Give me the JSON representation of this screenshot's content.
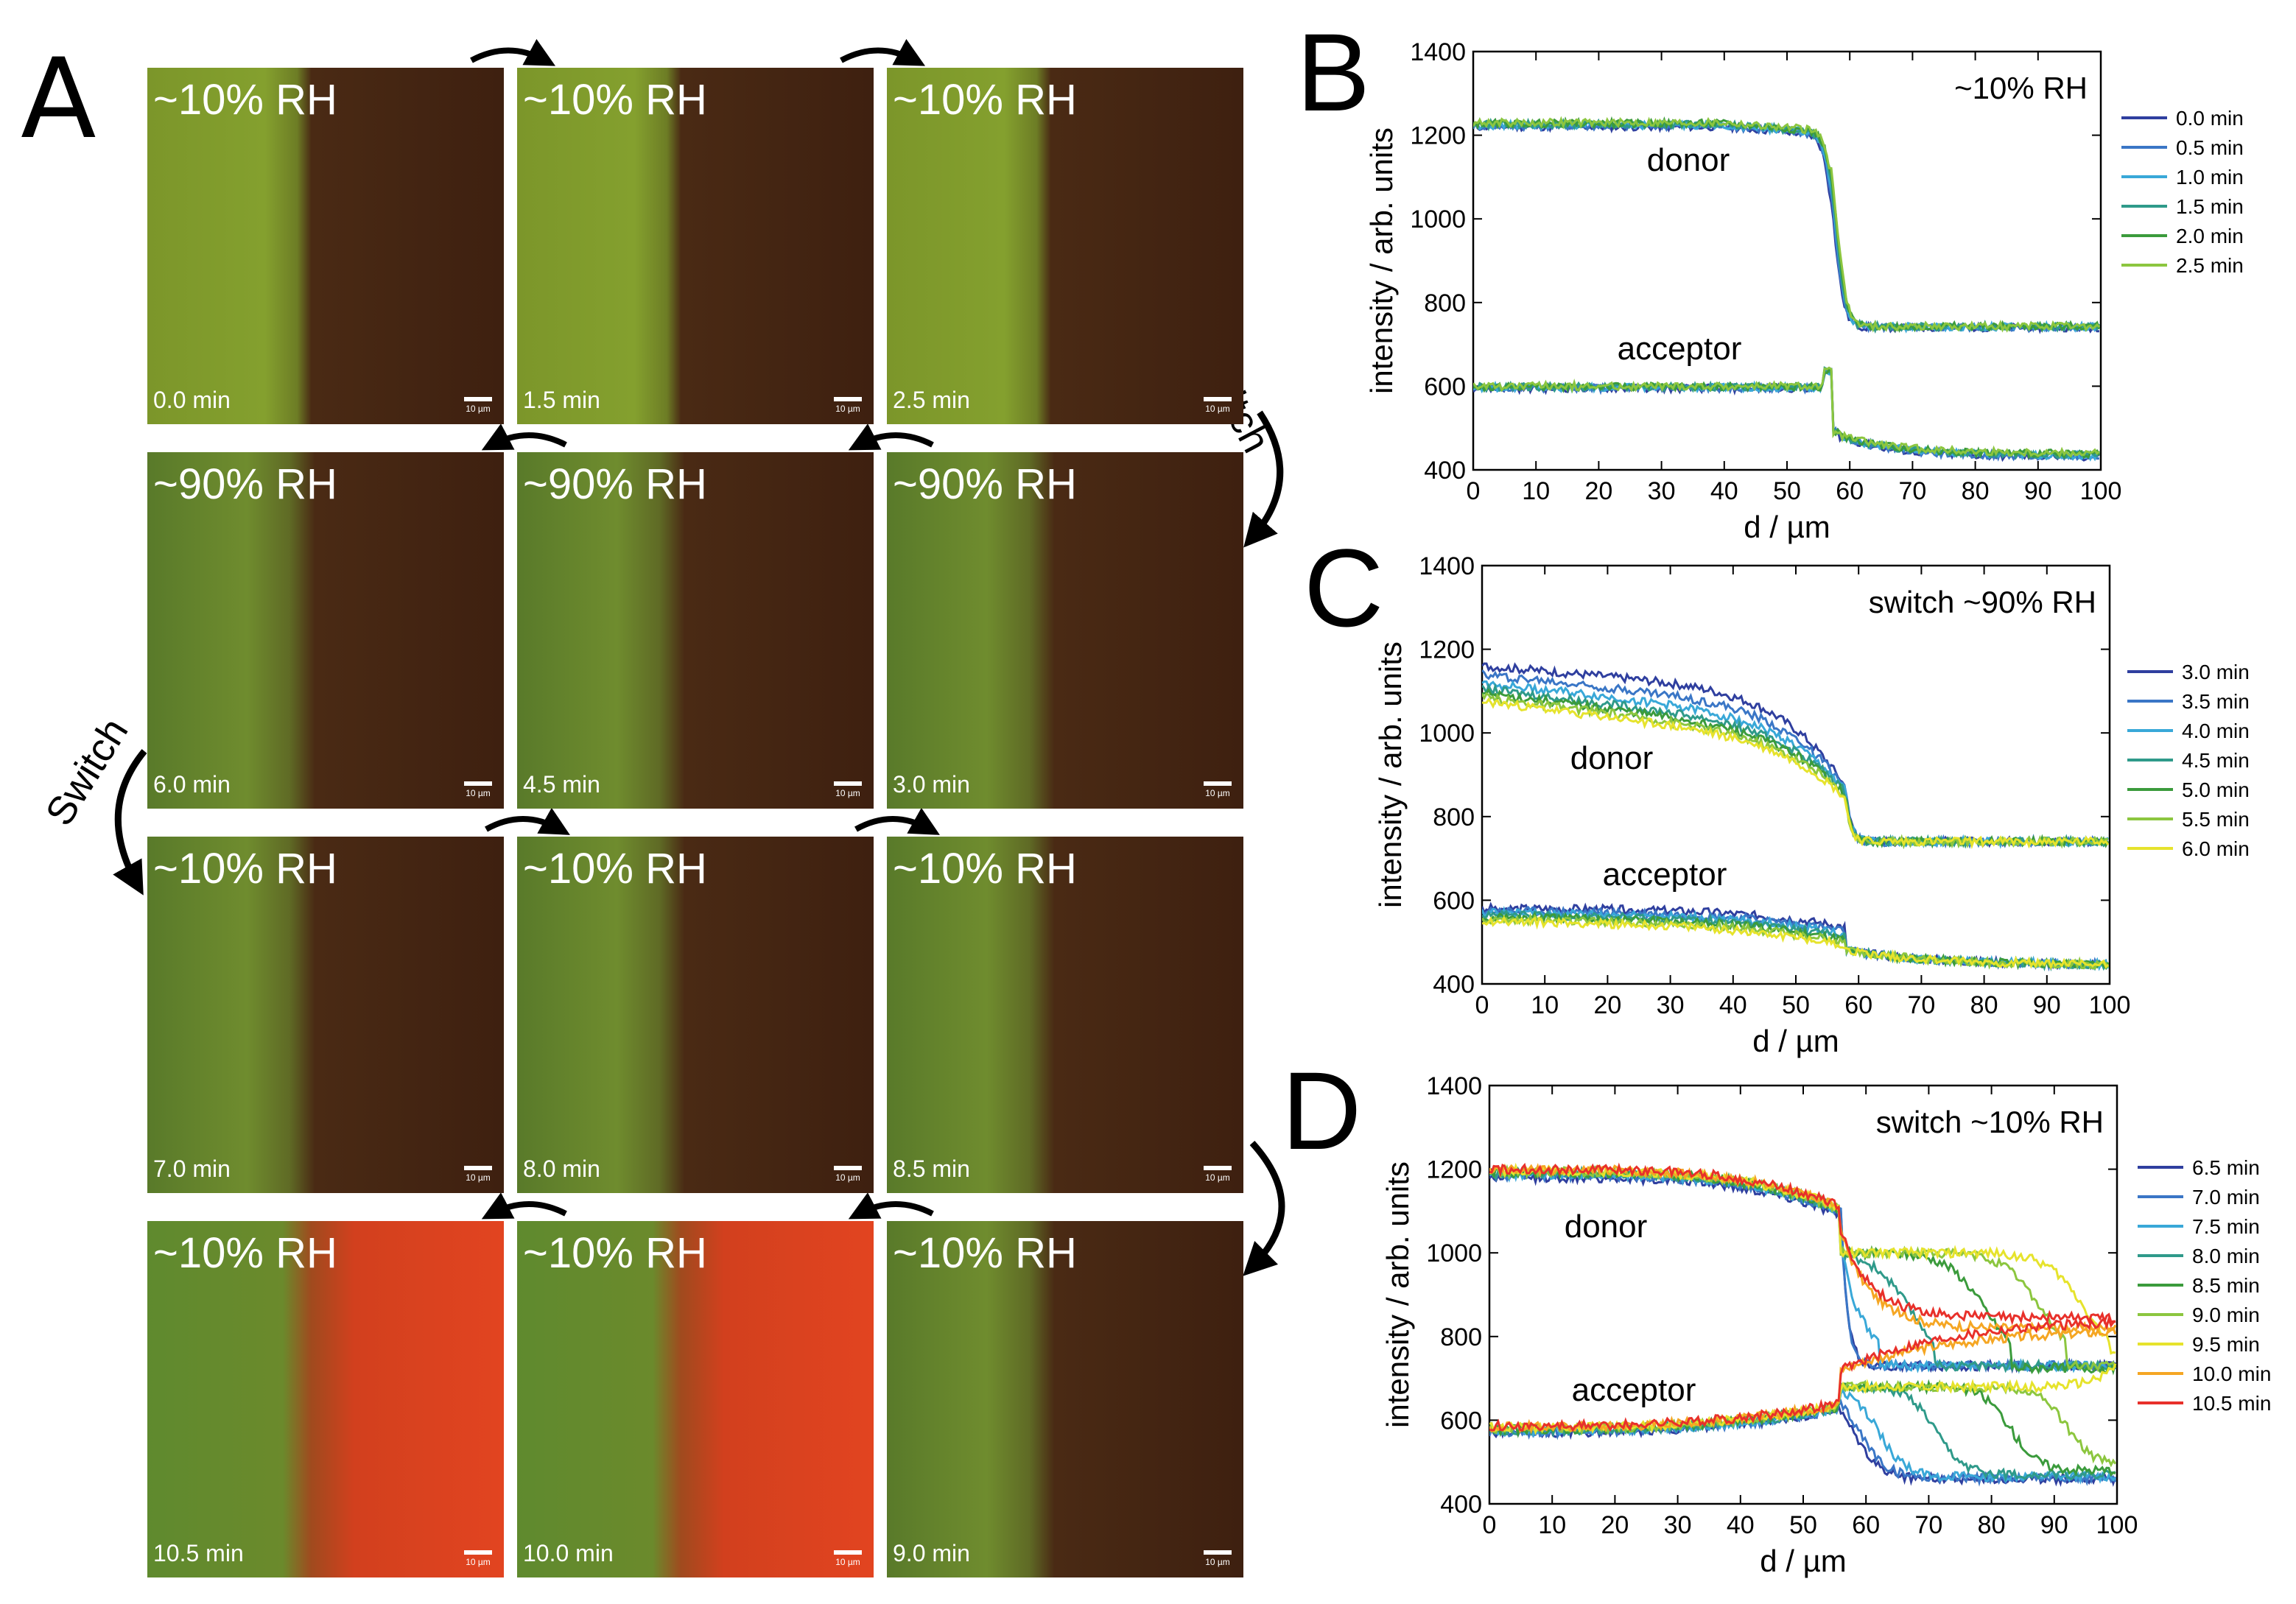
{
  "panel_a": {
    "letter": "A",
    "switch_labels": [
      "Switch",
      "Switch"
    ],
    "scale_bar": "10 µm",
    "tiles": [
      {
        "rh": "~10% RH",
        "time": "0.0 min",
        "mode": "dry"
      },
      {
        "rh": "~10% RH",
        "time": "1.5 min",
        "mode": "dry"
      },
      {
        "rh": "~10% RH",
        "time": "2.5 min",
        "mode": "dry"
      },
      {
        "rh": "~90% RH",
        "time": "6.0 min",
        "mode": "wet"
      },
      {
        "rh": "~90% RH",
        "time": "4.5 min",
        "mode": "wet"
      },
      {
        "rh": "~90% RH",
        "time": "3.0 min",
        "mode": "wet"
      },
      {
        "rh": "~10% RH",
        "time": "7.0 min",
        "mode": "wet"
      },
      {
        "rh": "~10% RH",
        "time": "8.0 min",
        "mode": "wet"
      },
      {
        "rh": "~10% RH",
        "time": "8.5 min",
        "mode": "wet"
      },
      {
        "rh": "~10% RH",
        "time": "10.5 min",
        "mode": "red"
      },
      {
        "rh": "~10% RH",
        "time": "10.0 min",
        "mode": "red"
      },
      {
        "rh": "~10% RH",
        "time": "9.0 min",
        "mode": "wet"
      }
    ]
  },
  "chart_data": [
    {
      "panel": "B",
      "type": "line",
      "annotation": "~10% RH",
      "xlabel": "d / µm",
      "ylabel": "intensity / arb. units",
      "xlim": [
        0,
        100
      ],
      "ylim": [
        400,
        1400
      ],
      "xticks": [
        0,
        10,
        20,
        30,
        40,
        50,
        60,
        70,
        80,
        90,
        100
      ],
      "yticks": [
        400,
        600,
        800,
        1000,
        1200,
        1400
      ],
      "grid": false,
      "legend_position": "right",
      "group_labels": {
        "donor": "donor",
        "acceptor": "acceptor"
      },
      "series": [
        {
          "name": "0.0 min",
          "color": "#2f3f9f",
          "donor": {
            "high": 1220,
            "low": 740,
            "x0": 57.5
          },
          "acceptor": {
            "plateau": 595,
            "x0": 57.5,
            "end": 430
          }
        },
        {
          "name": "0.5 min",
          "color": "#3a76c6",
          "donor": {
            "high": 1222,
            "low": 741,
            "x0": 57.6
          },
          "acceptor": {
            "plateau": 596,
            "x0": 57.6,
            "end": 432
          }
        },
        {
          "name": "1.0 min",
          "color": "#39a8d8",
          "donor": {
            "high": 1224,
            "low": 742,
            "x0": 57.7
          },
          "acceptor": {
            "plateau": 597,
            "x0": 57.7,
            "end": 434
          }
        },
        {
          "name": "1.5 min",
          "color": "#2f9a8a",
          "donor": {
            "high": 1226,
            "low": 742,
            "x0": 57.8
          },
          "acceptor": {
            "plateau": 598,
            "x0": 57.8,
            "end": 436
          }
        },
        {
          "name": "2.0 min",
          "color": "#3b9b3c",
          "donor": {
            "high": 1228,
            "low": 743,
            "x0": 57.9
          },
          "acceptor": {
            "plateau": 599,
            "x0": 57.9,
            "end": 438
          }
        },
        {
          "name": "2.5 min",
          "color": "#8cc63f",
          "donor": {
            "high": 1230,
            "low": 743,
            "x0": 58.0
          },
          "acceptor": {
            "plateau": 600,
            "x0": 58.0,
            "end": 440
          }
        }
      ]
    },
    {
      "panel": "C",
      "type": "line",
      "annotation": "switch ~90% RH",
      "xlabel": "d / µm",
      "ylabel": "intensity / arb. units",
      "xlim": [
        0,
        100
      ],
      "ylim": [
        400,
        1400
      ],
      "xticks": [
        0,
        10,
        20,
        30,
        40,
        50,
        60,
        70,
        80,
        90,
        100
      ],
      "yticks": [
        400,
        600,
        800,
        1000,
        1200,
        1400
      ],
      "grid": false,
      "legend_position": "right",
      "group_labels": {
        "donor": "donor",
        "acceptor": "acceptor"
      },
      "series": [
        {
          "name": "3.0 min",
          "color": "#2f3f9f",
          "donor": {
            "start": 1160,
            "knee": 1080,
            "edge": 860,
            "low": 740
          },
          "acceptor": {
            "start": 580,
            "mid": 575,
            "low": 445
          }
        },
        {
          "name": "3.5 min",
          "color": "#3a76c6",
          "donor": {
            "start": 1140,
            "knee": 1040,
            "edge": 855,
            "low": 740
          },
          "acceptor": {
            "start": 575,
            "mid": 565,
            "low": 445
          }
        },
        {
          "name": "4.0 min",
          "color": "#39a8d8",
          "donor": {
            "start": 1120,
            "knee": 1010,
            "edge": 850,
            "low": 740
          },
          "acceptor": {
            "start": 570,
            "mid": 558,
            "low": 445
          }
        },
        {
          "name": "4.5 min",
          "color": "#2f9a8a",
          "donor": {
            "start": 1105,
            "knee": 990,
            "edge": 845,
            "low": 740
          },
          "acceptor": {
            "start": 565,
            "mid": 552,
            "low": 445
          }
        },
        {
          "name": "5.0 min",
          "color": "#3b9b3c",
          "donor": {
            "start": 1095,
            "knee": 975,
            "edge": 840,
            "low": 740
          },
          "acceptor": {
            "start": 560,
            "mid": 545,
            "low": 445
          }
        },
        {
          "name": "5.5 min",
          "color": "#8cc63f",
          "donor": {
            "start": 1085,
            "knee": 965,
            "edge": 835,
            "low": 740
          },
          "acceptor": {
            "start": 555,
            "mid": 538,
            "low": 445
          }
        },
        {
          "name": "6.0 min",
          "color": "#e6e32c",
          "donor": {
            "start": 1075,
            "knee": 955,
            "edge": 830,
            "low": 740
          },
          "acceptor": {
            "start": 550,
            "mid": 532,
            "low": 445
          }
        }
      ]
    },
    {
      "panel": "D",
      "type": "line",
      "annotation": "switch ~10% RH",
      "xlabel": "d / µm",
      "ylabel": "intensity / arb. units",
      "xlim": [
        0,
        100
      ],
      "ylim": [
        400,
        1400
      ],
      "xticks": [
        0,
        10,
        20,
        30,
        40,
        50,
        60,
        70,
        80,
        90,
        100
      ],
      "yticks": [
        400,
        600,
        800,
        1000,
        1200,
        1400
      ],
      "grid": false,
      "legend_position": "right",
      "group_labels": {
        "donor": "donor",
        "acceptor": "acceptor"
      },
      "series": [
        {
          "name": "6.5 min",
          "color": "#2f3f9f",
          "donor": {
            "high": 1180,
            "front": 58,
            "end": 730
          },
          "acceptor": {
            "start": 570,
            "front": 58,
            "end": 460
          }
        },
        {
          "name": "7.0 min",
          "color": "#3a76c6",
          "donor": {
            "high": 1185,
            "front": 59,
            "end": 730
          },
          "acceptor": {
            "start": 572,
            "front": 59,
            "end": 462
          }
        },
        {
          "name": "7.5 min",
          "color": "#39a8d8",
          "donor": {
            "high": 1188,
            "front": 62,
            "end": 730
          },
          "acceptor": {
            "start": 574,
            "front": 62,
            "end": 465
          }
        },
        {
          "name": "8.0 min",
          "color": "#2f9a8a",
          "donor": {
            "high": 1190,
            "front": 71,
            "end": 730
          },
          "acceptor": {
            "start": 576,
            "front": 71,
            "end": 470
          }
        },
        {
          "name": "8.5 min",
          "color": "#3b9b3c",
          "donor": {
            "high": 1192,
            "front": 83,
            "end": 725
          },
          "acceptor": {
            "start": 578,
            "front": 83,
            "end": 480
          }
        },
        {
          "name": "9.0 min",
          "color": "#8cc63f",
          "donor": {
            "high": 1194,
            "front": 92,
            "end": 730
          },
          "acceptor": {
            "start": 580,
            "front": 92,
            "end": 490
          }
        },
        {
          "name": "9.5 min",
          "color": "#e6e32c",
          "donor": {
            "high": 1196,
            "front": 99,
            "end": 760
          },
          "acceptor": {
            "start": 582,
            "front": 99,
            "end": 760
          }
        },
        {
          "name": "10.0 min",
          "color": "#f5a623",
          "donor": {
            "high": 1198,
            "front": 120,
            "end": 820
          },
          "acceptor": {
            "start": 584,
            "front": 120,
            "end": 820
          }
        },
        {
          "name": "10.5 min",
          "color": "#e8302a",
          "donor": {
            "high": 1200,
            "front": 130,
            "end": 845
          },
          "acceptor": {
            "start": 586,
            "front": 130,
            "end": 845
          }
        }
      ]
    }
  ]
}
